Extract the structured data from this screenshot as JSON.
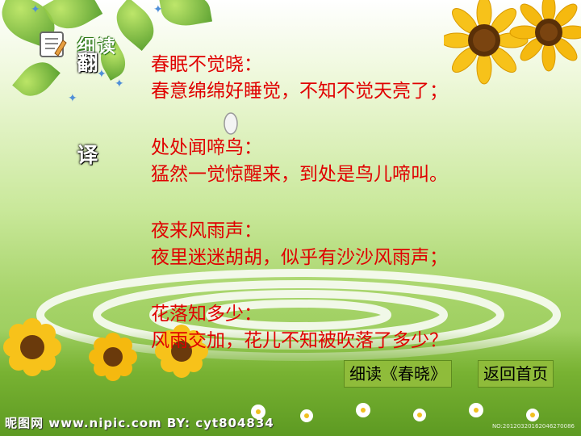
{
  "badge": {
    "label": "细读"
  },
  "side_labels": {
    "top": "翻",
    "middle": "译"
  },
  "poem": {
    "stanzas": [
      {
        "original": "春眠不觉晓：",
        "translation": "春意绵绵好睡觉，不知不觉天亮了；"
      },
      {
        "original": "处处闻啼鸟：",
        "translation": "猛然一觉惊醒来，到处是鸟儿啼叫。"
      },
      {
        "original": "夜来风雨声：",
        "translation": "夜里迷迷胡胡，似乎有沙沙风雨声；"
      },
      {
        "original": "花落知多少：",
        "translation": "风雨交加，花儿不知被吹落了多少？"
      }
    ]
  },
  "buttons": {
    "read_chunxiao": "细读《春晓》",
    "back_home": "返回首页"
  },
  "watermark": "昵图网 www.nipic.com   BY: cyt804834",
  "corner_id": "NO:20120320162046270086",
  "colors": {
    "poem_text": "#e00000",
    "button_bg": "#8fbc3a"
  }
}
